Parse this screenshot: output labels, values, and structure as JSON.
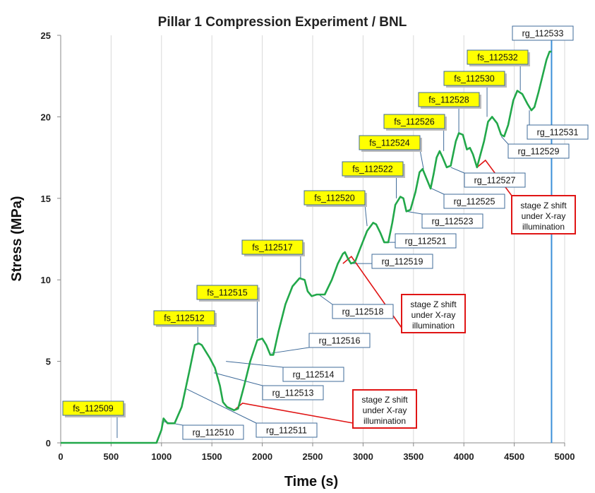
{
  "chart_data": {
    "type": "line",
    "title": "Pillar 1 Compression Experiment / BNL",
    "xlabel": "Time (s)",
    "ylabel": "Stress (MPa)",
    "xlim": [
      0,
      5000
    ],
    "ylim": [
      0,
      25
    ],
    "xticks": [
      0,
      500,
      1000,
      1500,
      2000,
      2500,
      3000,
      3500,
      4000,
      4500,
      5000
    ],
    "yticks": [
      0,
      5,
      10,
      15,
      20,
      25
    ],
    "grid": "vertical",
    "legend": "none",
    "series": [
      {
        "color": "#22a84a",
        "x": [
          0,
          500,
          950,
          1000,
          1020,
          1060,
          1130,
          1200,
          1280,
          1330,
          1370,
          1400,
          1440,
          1480,
          1530,
          1580,
          1610,
          1650,
          1720,
          1760,
          1820,
          1880,
          1950,
          2000,
          2040,
          2080,
          2110,
          2160,
          2230,
          2300,
          2370,
          2420,
          2450,
          2490,
          2540,
          2580,
          2620,
          2690,
          2750,
          2800,
          2820,
          2850,
          2880,
          2920,
          2970,
          3040,
          3100,
          3130,
          3170,
          3210,
          3250,
          3290,
          3320,
          3370,
          3400,
          3430,
          3470,
          3520,
          3560,
          3590,
          3630,
          3670,
          3700,
          3730,
          3760,
          3790,
          3830,
          3870,
          3920,
          3950,
          3990,
          4030,
          4060,
          4090,
          4130,
          4200,
          4240,
          4280,
          4330,
          4370,
          4400,
          4440,
          4490,
          4530,
          4580,
          4630,
          4670,
          4700,
          4740,
          4780,
          4820,
          4850,
          4870
        ],
        "values": [
          0,
          0,
          0,
          0.8,
          1.5,
          1.2,
          1.2,
          2.2,
          4.5,
          6.0,
          6.1,
          6.0,
          5.6,
          5.2,
          4.6,
          3.5,
          2.5,
          2.2,
          2.0,
          2.1,
          3.5,
          5.0,
          6.3,
          6.4,
          6.0,
          5.4,
          5.4,
          6.8,
          8.5,
          9.6,
          10.1,
          10.0,
          9.3,
          9.0,
          9.1,
          9.1,
          9.1,
          10.0,
          11.0,
          11.6,
          11.7,
          11.3,
          11.0,
          11.1,
          11.9,
          13.0,
          13.5,
          13.4,
          12.9,
          12.3,
          12.3,
          13.5,
          14.6,
          15.1,
          15.0,
          14.2,
          14.3,
          15.4,
          16.6,
          16.8,
          16.2,
          15.6,
          16.5,
          17.5,
          17.9,
          17.5,
          16.9,
          17.0,
          18.5,
          19.0,
          18.9,
          18.0,
          18.1,
          17.7,
          16.9,
          18.5,
          19.7,
          20.0,
          19.6,
          18.9,
          18.8,
          19.5,
          21.0,
          21.6,
          21.4,
          20.8,
          20.4,
          20.6,
          21.5,
          22.5,
          23.5,
          24.0,
          24.0
        ]
      }
    ],
    "markers": [
      {
        "label": "rg_112533",
        "x": 4870,
        "color": "#3b8fd8"
      }
    ],
    "annotations": [
      {
        "label": "fs_112509",
        "style": "highlight",
        "x": 560,
        "y": 0.3
      },
      {
        "label": "fs_112512",
        "style": "highlight",
        "x": 1360,
        "y": 6.1
      },
      {
        "label": "fs_112515",
        "style": "highlight",
        "x": 1950,
        "y": 6.4
      },
      {
        "label": "fs_112517",
        "style": "highlight",
        "x": 2380,
        "y": 10.1
      },
      {
        "label": "fs_112520",
        "style": "highlight",
        "x": 3040,
        "y": 13.3
      },
      {
        "label": "fs_112522",
        "style": "highlight",
        "x": 3330,
        "y": 15.0
      },
      {
        "label": "fs_112524",
        "style": "highlight",
        "x": 3600,
        "y": 16.8
      },
      {
        "label": "fs_112526",
        "style": "highlight",
        "x": 3800,
        "y": 17.9
      },
      {
        "label": "fs_112528",
        "style": "highlight",
        "x": 3950,
        "y": 19.0
      },
      {
        "label": "fs_112530",
        "style": "highlight",
        "x": 4230,
        "y": 20.0
      },
      {
        "label": "fs_112532",
        "style": "highlight",
        "x": 4560,
        "y": 21.6
      },
      {
        "label": "rg_112510",
        "style": "box",
        "x": 1020,
        "y": 1.3
      },
      {
        "label": "rg_112511",
        "style": "box",
        "x": 1250,
        "y": 3.3
      },
      {
        "label": "rg_112513",
        "style": "box",
        "x": 1520,
        "y": 4.3
      },
      {
        "label": "rg_112514",
        "style": "box",
        "x": 1640,
        "y": 5.0
      },
      {
        "label": "rg_112516",
        "style": "box",
        "x": 2090,
        "y": 5.5
      },
      {
        "label": "rg_112518",
        "style": "box",
        "x": 2560,
        "y": 9.1
      },
      {
        "label": "rg_112519",
        "style": "box",
        "x": 2880,
        "y": 11.0
      },
      {
        "label": "rg_112521",
        "style": "box",
        "x": 3250,
        "y": 12.3
      },
      {
        "label": "rg_112523",
        "style": "box",
        "x": 3430,
        "y": 14.2
      },
      {
        "label": "rg_112525",
        "style": "box",
        "x": 3680,
        "y": 15.6
      },
      {
        "label": "rg_112527",
        "style": "box",
        "x": 3870,
        "y": 16.9
      },
      {
        "label": "rg_112529",
        "style": "box",
        "x": 4370,
        "y": 18.8
      },
      {
        "label": "rg_112531",
        "style": "box",
        "x": 4650,
        "y": 20.4
      }
    ],
    "notes": [
      {
        "lines": [
          "stage Z shift",
          "under X-ray",
          "illumination"
        ],
        "color": "#e01515",
        "target_x": 1720,
        "target_y": 2.0
      },
      {
        "lines": [
          "stage Z shift",
          "under X-ray",
          "illumination"
        ],
        "color": "#e01515",
        "target_x": 2800,
        "target_y": 11.0
      },
      {
        "lines": [
          "stage Z shift",
          "under X-ray",
          "illumination"
        ],
        "color": "#e01515",
        "target_x": 4130,
        "target_y": 16.9
      }
    ]
  }
}
